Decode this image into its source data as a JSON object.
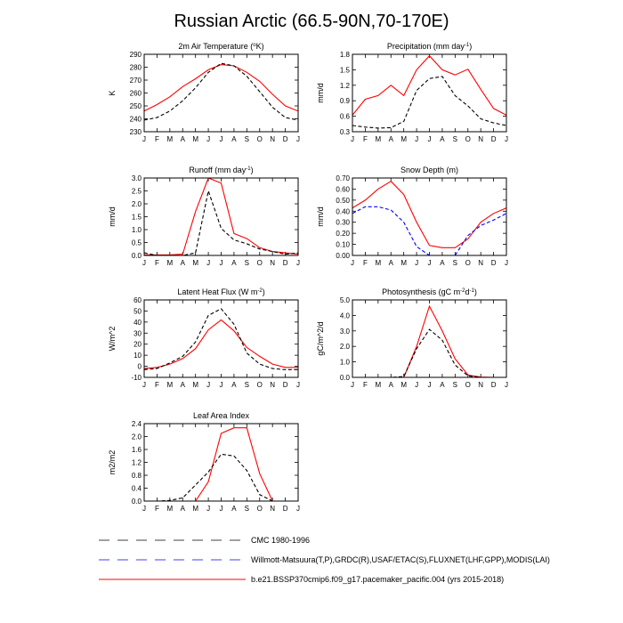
{
  "title": "Russian Arctic (66.5-90N,70-170E)",
  "months": [
    "J",
    "F",
    "M",
    "A",
    "M",
    "J",
    "J",
    "A",
    "S",
    "O",
    "N",
    "D",
    "J"
  ],
  "legend": [
    {
      "key": "obs",
      "label": "CMC 1980-1996",
      "color": "#000000",
      "style": "dash"
    },
    {
      "key": "obs2",
      "label": "Willmott-Matsuura(T,P),GRDC(R),USAF/ETAC(S),FLUXNET(LHF,GPP),MODIS(LAI)",
      "color": "#0000ff",
      "style": "dash"
    },
    {
      "key": "model",
      "label": "b.e21.BSSP370cmip6.f09_g17.pacemaker_pacific.004 (yrs 2015-2018)",
      "color": "#ff0000",
      "style": "solid"
    }
  ],
  "chart_data": [
    {
      "type": "line",
      "id": "air-temp",
      "title": "2m Air Temperature (",
      "title_sup": "o",
      "title_end": "K)",
      "ylabel": "K",
      "ylim": [
        230,
        290
      ],
      "yticks": [
        230,
        240,
        250,
        260,
        270,
        280,
        290
      ],
      "tick_labels": [
        "230",
        "240",
        "250",
        "260",
        "270",
        "280",
        "290"
      ],
      "series": [
        {
          "name": "model",
          "color": "#ff0000",
          "style": "solid",
          "values": [
            246,
            251,
            257,
            265,
            271,
            278,
            282,
            281,
            276,
            269,
            259,
            250,
            246
          ]
        },
        {
          "name": "obs",
          "color": "#000000",
          "style": "dash",
          "values": [
            239,
            241,
            246,
            254,
            264,
            276,
            283,
            281,
            273,
            261,
            249,
            241,
            239
          ]
        }
      ]
    },
    {
      "type": "line",
      "id": "precip",
      "title": "Precipitation (mm day",
      "title_sup": "-1",
      "title_end": ")",
      "ylabel": "mm/d",
      "ylim": [
        0.3,
        1.8
      ],
      "yticks": [
        0.3,
        0.6,
        0.9,
        1.2,
        1.5,
        1.8
      ],
      "tick_labels": [
        "0.3",
        "0.6",
        "0.9",
        "1.2",
        "1.5",
        "1.8"
      ],
      "series": [
        {
          "name": "model",
          "color": "#ff0000",
          "style": "solid",
          "values": [
            0.62,
            0.93,
            1.0,
            1.2,
            1.0,
            1.5,
            1.77,
            1.5,
            1.4,
            1.51,
            1.12,
            0.75,
            0.62
          ]
        },
        {
          "name": "obs",
          "color": "#000000",
          "style": "dash",
          "values": [
            0.42,
            0.39,
            0.37,
            0.38,
            0.5,
            1.1,
            1.33,
            1.37,
            1.0,
            0.8,
            0.55,
            0.47,
            0.42
          ]
        }
      ]
    },
    {
      "type": "line",
      "id": "runoff",
      "title": "Runoff (mm day",
      "title_sup": "-1",
      "title_end": ")",
      "ylabel": "mm/d",
      "ylim": [
        0,
        3
      ],
      "yticks": [
        0,
        0.5,
        1,
        1.5,
        2,
        2.5,
        3
      ],
      "tick_labels": [
        "0.0",
        "0.5",
        "1.0",
        "1.5",
        "2.0",
        "2.5",
        "3.0"
      ],
      "series": [
        {
          "name": "model",
          "color": "#ff0000",
          "style": "solid",
          "values": [
            0.02,
            0.02,
            0.02,
            0.05,
            1.7,
            3.0,
            2.8,
            0.85,
            0.65,
            0.3,
            0.15,
            0.1,
            0.05
          ]
        },
        {
          "name": "obs",
          "color": "#000000",
          "style": "dash",
          "values": [
            0.1,
            0.0,
            0.0,
            0.0,
            0.1,
            2.5,
            1.05,
            0.6,
            0.45,
            0.25,
            0.15,
            0.05,
            0.1
          ]
        }
      ]
    },
    {
      "type": "line",
      "id": "snow-depth",
      "title": "Snow Depth (m)",
      "title_sup": "",
      "title_end": "",
      "ylabel": "mm/d",
      "ylim": [
        0,
        0.7
      ],
      "yticks": [
        0,
        0.1,
        0.2,
        0.3,
        0.4,
        0.5,
        0.6,
        0.7
      ],
      "tick_labels": [
        "0.00",
        "0.10",
        "0.20",
        "0.30",
        "0.40",
        "0.50",
        "0.60",
        "0.70"
      ],
      "series": [
        {
          "name": "model",
          "color": "#ff0000",
          "style": "solid",
          "values": [
            0.43,
            0.5,
            0.6,
            0.67,
            0.55,
            0.3,
            0.09,
            0.07,
            0.07,
            0.15,
            0.3,
            0.38,
            0.43
          ]
        },
        {
          "name": "obs2",
          "color": "#0000ff",
          "style": "dash",
          "values": [
            0.38,
            0.44,
            0.44,
            0.41,
            0.3,
            0.08,
            0.0,
            0.0,
            0.0,
            0.18,
            0.27,
            0.32,
            0.38
          ]
        }
      ]
    },
    {
      "type": "line",
      "id": "latent-heat",
      "title": "Latent Heat Flux (W m",
      "title_sup": "-2",
      "title_end": ")",
      "ylabel": "W/m^2",
      "ylim": [
        -10,
        60
      ],
      "yticks": [
        -10,
        0,
        10,
        20,
        30,
        40,
        50,
        60
      ],
      "tick_labels": [
        "-10",
        "0",
        "10",
        "20",
        "30",
        "40",
        "50",
        "60"
      ],
      "series": [
        {
          "name": "model",
          "color": "#ff0000",
          "style": "solid",
          "values": [
            -2,
            -1,
            2,
            7,
            16,
            33,
            42,
            32,
            17,
            9,
            2,
            -1,
            -1
          ]
        },
        {
          "name": "obs",
          "color": "#000000",
          "style": "dash",
          "values": [
            -3,
            -2,
            3,
            9,
            22,
            46,
            52,
            38,
            12,
            2,
            -2,
            -3,
            -3
          ]
        }
      ]
    },
    {
      "type": "line",
      "id": "photosynthesis",
      "title": "Photosynthesis (gC m",
      "title_sup": "-2",
      "title_end": "d",
      "title_sup2": "-1",
      "title_end2": ")",
      "ylabel": "gC/m^2/d",
      "ylim": [
        0,
        5
      ],
      "yticks": [
        0,
        1,
        2,
        3,
        4,
        5
      ],
      "tick_labels": [
        "0.0",
        "1.0",
        "2.0",
        "3.0",
        "4.0",
        "5.0"
      ],
      "series": [
        {
          "name": "model",
          "color": "#ff0000",
          "style": "solid",
          "values": [
            0,
            0,
            0,
            0,
            0,
            2.0,
            4.6,
            3.0,
            1.2,
            0.15,
            0.02,
            0,
            0
          ]
        },
        {
          "name": "obs",
          "color": "#000000",
          "style": "dash",
          "values": [
            0,
            0,
            0,
            0,
            0.05,
            1.85,
            3.1,
            2.4,
            0.8,
            0.1,
            0,
            0,
            0
          ]
        }
      ]
    },
    {
      "type": "line",
      "id": "lai",
      "title": "Leaf Area Index",
      "title_sup": "",
      "title_end": "",
      "ylabel": "m2/m2",
      "ylim": [
        0,
        2.4
      ],
      "yticks": [
        0,
        0.4,
        0.8,
        1.2,
        1.6,
        2.0,
        2.4
      ],
      "tick_labels": [
        "0.0",
        "0.4",
        "0.8",
        "1.2",
        "1.6",
        "2.0",
        "2.4"
      ],
      "series": [
        {
          "name": "model",
          "color": "#ff0000",
          "style": "solid",
          "values": [
            0,
            0,
            0,
            0,
            0,
            0.6,
            2.1,
            2.27,
            2.27,
            0.85,
            0,
            0,
            0
          ]
        },
        {
          "name": "obs",
          "color": "#000000",
          "style": "dash",
          "values": [
            0,
            0,
            0.02,
            0.1,
            0.5,
            0.9,
            1.45,
            1.4,
            0.95,
            0.2,
            0,
            0,
            0
          ]
        }
      ]
    }
  ]
}
